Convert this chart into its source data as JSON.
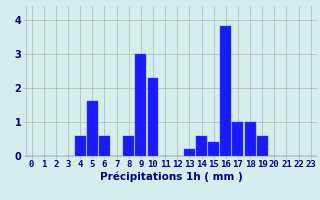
{
  "hours": [
    0,
    1,
    2,
    3,
    4,
    5,
    6,
    7,
    8,
    9,
    10,
    11,
    12,
    13,
    14,
    15,
    16,
    17,
    18,
    19,
    20,
    21,
    22,
    23
  ],
  "values": [
    0,
    0,
    0,
    0,
    0.6,
    1.6,
    0.6,
    0,
    0.6,
    3.0,
    2.3,
    0,
    0,
    0.2,
    0.6,
    0.4,
    3.8,
    1.0,
    1.0,
    0.6,
    0,
    0,
    0,
    0
  ],
  "bar_color": "#1a1aff",
  "bar_edge_color": "#4444ff",
  "background_color": "#d5eeed",
  "grid_color": "#aabbaa",
  "text_color": "#000088",
  "xlabel": "Précipitations 1h ( mm )",
  "ylim": [
    0,
    4.4
  ],
  "yticks": [
    0,
    1,
    2,
    3,
    4
  ],
  "xlabel_fontsize": 7.5,
  "tick_fontsize": 6.5
}
